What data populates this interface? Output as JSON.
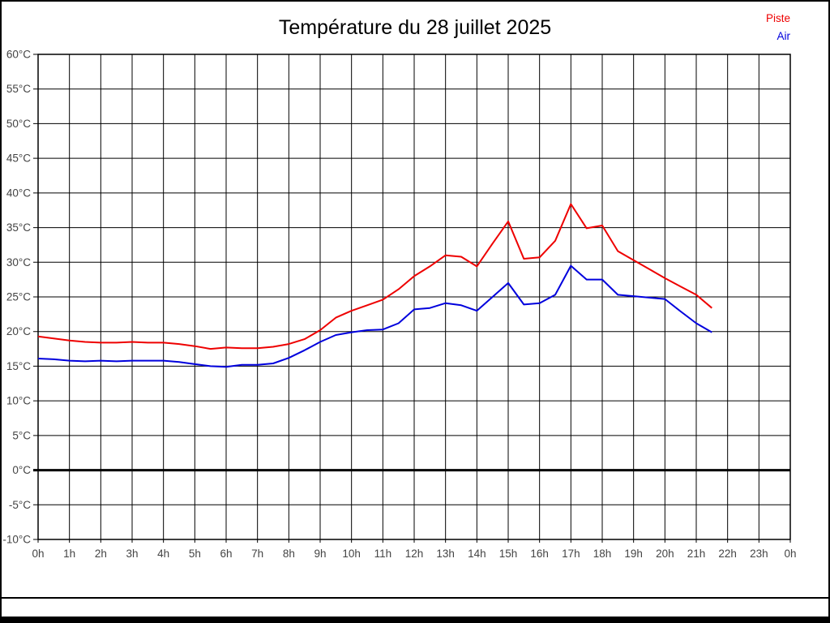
{
  "title": "Température du 28 juillet 2025",
  "legend": {
    "items": [
      {
        "label": "Piste",
        "color": "#ee0000"
      },
      {
        "label": "Air",
        "color": "#0000dd"
      }
    ],
    "position": "top-right"
  },
  "colors": {
    "piste_line": "#ee0000",
    "air_line": "#0000dd",
    "grid": "#000000",
    "zero_line": "#000000",
    "tick_text": "#444444",
    "title_text": "#000000",
    "background": "#ffffff"
  },
  "chart_data": {
    "type": "line",
    "title": "Température du 28 juillet 2025",
    "xlabel": "",
    "ylabel": "",
    "grid": true,
    "legend_position": "top-right",
    "x_unit_hours": true,
    "x_range_hours": [
      0,
      24
    ],
    "x_tick_step_hours": 1,
    "x_tick_labels": [
      "0h",
      "1h",
      "2h",
      "3h",
      "4h",
      "5h",
      "6h",
      "7h",
      "8h",
      "9h",
      "10h",
      "11h",
      "12h",
      "13h",
      "14h",
      "15h",
      "16h",
      "17h",
      "18h",
      "19h",
      "20h",
      "21h",
      "22h",
      "23h",
      "0h"
    ],
    "ylim": [
      -10,
      60
    ],
    "y_tick_step": 5,
    "y_tick_labels": [
      "60°C",
      "55°C",
      "50°C",
      "45°C",
      "40°C",
      "35°C",
      "30°C",
      "25°C",
      "20°C",
      "15°C",
      "10°C",
      "5°C",
      "0°C",
      "-5°C",
      "-10°C"
    ],
    "zero_line_bold": true,
    "x_hours": [
      0,
      0.5,
      1,
      1.5,
      2,
      2.5,
      3,
      3.5,
      4,
      4.5,
      5,
      5.5,
      6,
      6.5,
      7,
      7.5,
      8,
      8.5,
      9,
      9.5,
      10,
      10.5,
      11,
      11.5,
      12,
      12.5,
      13,
      13.5,
      14,
      14.5,
      15,
      15.5,
      16,
      16.5,
      17,
      17.5,
      18,
      18.5,
      19,
      19.5,
      20,
      20.5,
      21,
      21.5
    ],
    "series": [
      {
        "name": "Piste",
        "color": "#ee0000",
        "values": [
          19.3,
          19.0,
          18.7,
          18.5,
          18.4,
          18.4,
          18.5,
          18.4,
          18.4,
          18.2,
          17.9,
          17.5,
          17.7,
          17.6,
          17.6,
          17.8,
          18.2,
          18.9,
          20.2,
          22.0,
          23.0,
          23.8,
          24.6,
          26.1,
          28.0,
          29.4,
          31.0,
          30.8,
          29.4,
          32.7,
          35.9,
          30.5,
          30.7,
          33.1,
          38.4,
          34.9,
          35.3,
          31.6,
          30.3,
          29.0,
          27.7,
          26.5,
          25.3,
          23.4
        ]
      },
      {
        "name": "Air",
        "color": "#0000dd",
        "values": [
          16.1,
          16.0,
          15.8,
          15.7,
          15.8,
          15.7,
          15.8,
          15.8,
          15.8,
          15.6,
          15.3,
          15.0,
          14.9,
          15.2,
          15.2,
          15.4,
          16.2,
          17.3,
          18.5,
          19.5,
          19.9,
          20.2,
          20.3,
          21.2,
          23.2,
          23.4,
          24.1,
          23.8,
          23.0,
          25.0,
          27.0,
          23.9,
          24.1,
          25.3,
          29.5,
          27.5,
          27.5,
          25.3,
          25.1,
          24.9,
          24.7,
          22.9,
          21.2,
          19.9
        ]
      }
    ]
  }
}
